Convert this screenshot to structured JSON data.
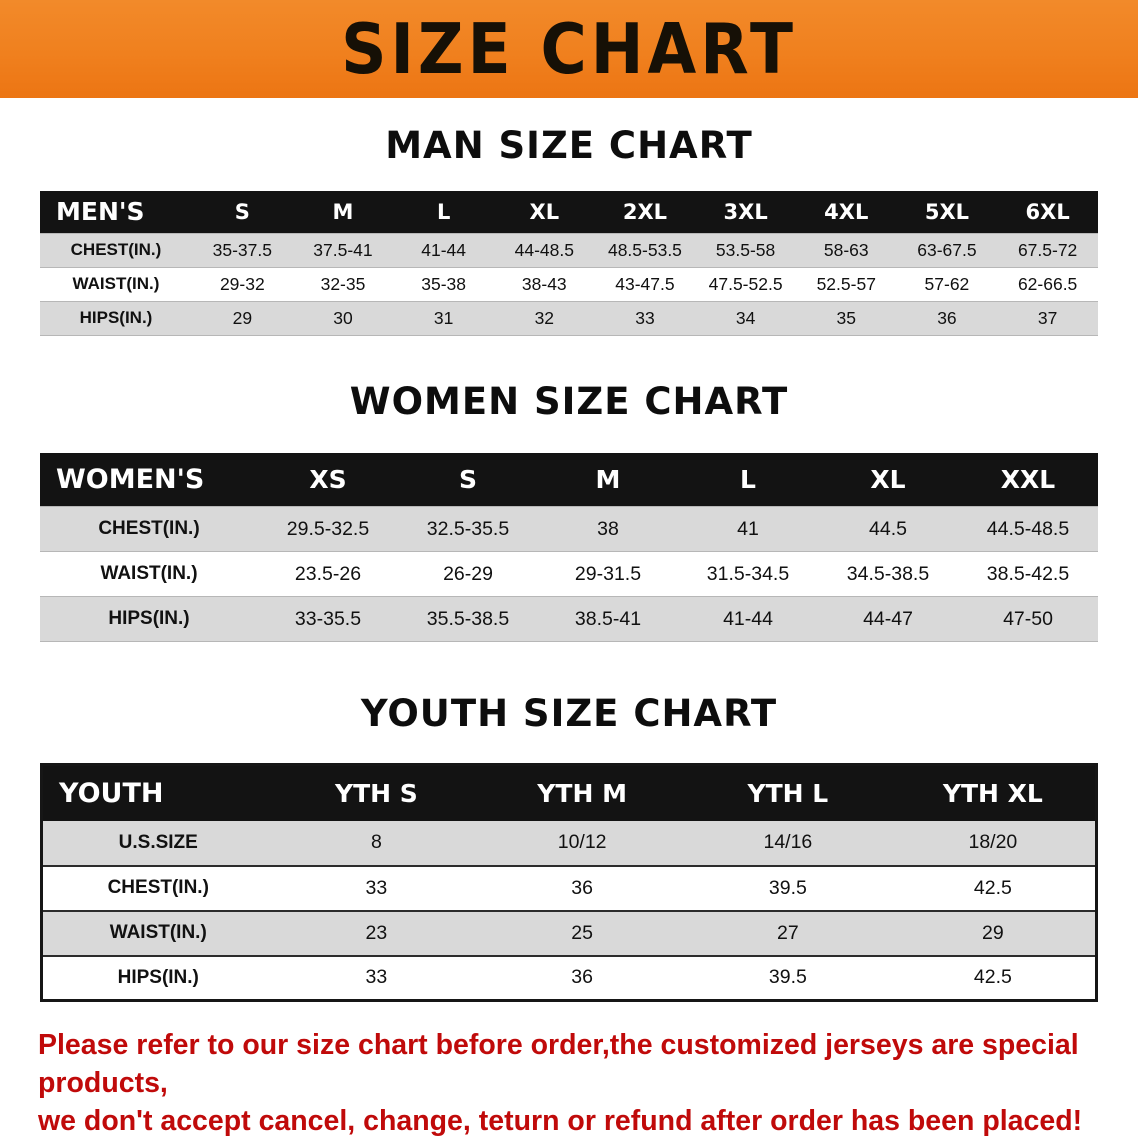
{
  "banner": {
    "title": "SIZE CHART"
  },
  "colors": {
    "banner_orange": "#f0801e",
    "table_header_bg": "#131313",
    "row_shade": "#d9d9d9",
    "notice_red": "#c00a0a"
  },
  "men": {
    "heading": "MAN SIZE CHART",
    "table": {
      "header": [
        "MEN'S",
        "S",
        "M",
        "L",
        "XL",
        "2XL",
        "3XL",
        "4XL",
        "5XL",
        "6XL"
      ],
      "rows": [
        {
          "label": "CHEST(IN.)",
          "values": [
            "35-37.5",
            "37.5-41",
            "41-44",
            "44-48.5",
            "48.5-53.5",
            "53.5-58",
            "58-63",
            "63-67.5",
            "67.5-72"
          ]
        },
        {
          "label": "WAIST(IN.)",
          "values": [
            "29-32",
            "32-35",
            "35-38",
            "38-43",
            "43-47.5",
            "47.5-52.5",
            "52.5-57",
            "57-62",
            "62-66.5"
          ]
        },
        {
          "label": "HIPS(IN.)",
          "values": [
            "29",
            "30",
            "31",
            "32",
            "33",
            "34",
            "35",
            "36",
            "37"
          ]
        }
      ]
    }
  },
  "women": {
    "heading": "WOMEN SIZE CHART",
    "table": {
      "header": [
        "WOMEN'S",
        "XS",
        "S",
        "M",
        "L",
        "XL",
        "XXL"
      ],
      "rows": [
        {
          "label": "CHEST(IN.)",
          "values": [
            "29.5-32.5",
            "32.5-35.5",
            "38",
            "41",
            "44.5",
            "44.5-48.5"
          ]
        },
        {
          "label": "WAIST(IN.)",
          "values": [
            "23.5-26",
            "26-29",
            "29-31.5",
            "31.5-34.5",
            "34.5-38.5",
            "38.5-42.5"
          ]
        },
        {
          "label": "HIPS(IN.)",
          "values": [
            "33-35.5",
            "35.5-38.5",
            "38.5-41",
            "41-44",
            "44-47",
            "47-50"
          ]
        }
      ]
    }
  },
  "youth": {
    "heading": "YOUTH SIZE CHART",
    "table": {
      "header": [
        "YOUTH",
        "YTH S",
        "YTH M",
        "YTH L",
        "YTH XL"
      ],
      "rows": [
        {
          "label": "U.S.SIZE",
          "values": [
            "8",
            "10/12",
            "14/16",
            "18/20"
          ]
        },
        {
          "label": "CHEST(IN.)",
          "values": [
            "33",
            "36",
            "39.5",
            "42.5"
          ]
        },
        {
          "label": "WAIST(IN.)",
          "values": [
            "23",
            "25",
            "27",
            "29"
          ]
        },
        {
          "label": "HIPS(IN.)",
          "values": [
            "33",
            "36",
            "39.5",
            "42.5"
          ]
        }
      ]
    }
  },
  "footer": {
    "line1": "Please refer to our size chart before order,the customized jerseys are special products,",
    "line2": "we don't accept cancel, change, teturn or refund after order has been placed!"
  }
}
